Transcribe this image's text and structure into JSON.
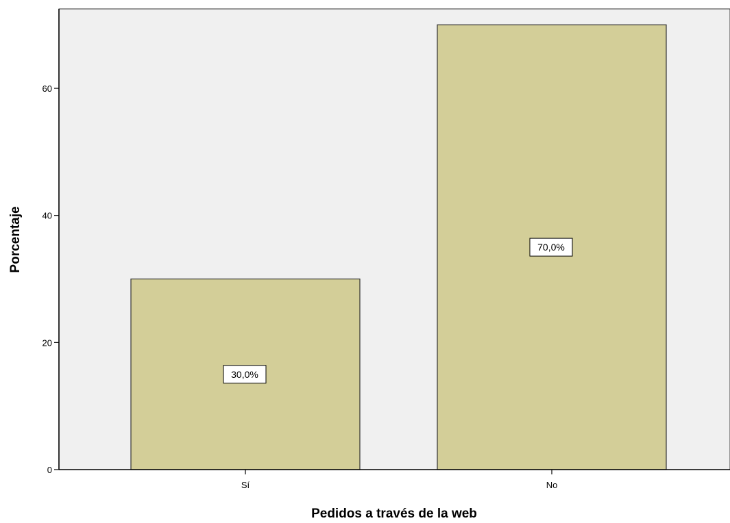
{
  "chart_data": {
    "type": "bar",
    "categories": [
      "Sí",
      "No"
    ],
    "values": [
      30,
      70
    ],
    "data_labels": [
      "30,0%",
      "70,0%"
    ],
    "xlabel": "Pedidos a través de la web",
    "ylabel": "Porcentaje",
    "ylim": [
      0,
      72.5
    ],
    "yticks": [
      0,
      20,
      40,
      60
    ],
    "ytick_labels": [
      "0",
      "20",
      "40",
      "60"
    ],
    "grid": false,
    "legend": "none"
  },
  "colors": {
    "bar_fill": "#d3ce98",
    "bar_stroke": "#333333",
    "plot_background": "#f0f0f0",
    "axis": "#000000"
  }
}
